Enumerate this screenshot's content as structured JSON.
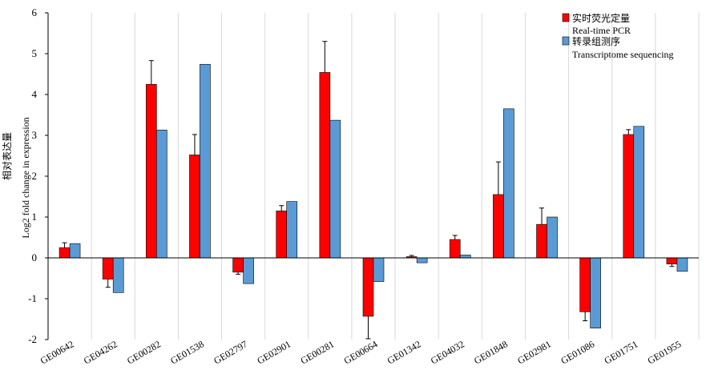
{
  "chart_data": {
    "type": "bar",
    "ylabel": "Log2 fold change in expression",
    "ylabel_cn": "相对表达量",
    "ylim": [
      -2,
      6
    ],
    "yticks": [
      "-2",
      "-1",
      "0",
      "1",
      "2",
      "3",
      "4",
      "5",
      "6"
    ],
    "grid": "vertical category separators",
    "legend_position": "top-right",
    "categories": [
      "GE00642",
      "GE04262",
      "GE00282",
      "GE01538",
      "GE02797",
      "GE02901",
      "GE00281",
      "GE00664",
      "GE01342",
      "GE04032",
      "GE01848",
      "GE02981",
      "GE01086",
      "GE01751",
      "GE01955"
    ],
    "series": [
      {
        "name_cn": "实时荧光定量",
        "name": "Real-time PCR",
        "color": "#ff0000",
        "values": [
          0.25,
          -0.52,
          4.25,
          2.52,
          -0.35,
          1.15,
          4.54,
          -1.43,
          0.03,
          0.45,
          1.55,
          0.82,
          -1.32,
          3.02,
          -0.15
        ],
        "errors": [
          0.12,
          0.2,
          0.58,
          0.5,
          0.05,
          0.13,
          0.76,
          0.55,
          0.03,
          0.1,
          0.8,
          0.4,
          0.22,
          0.12,
          0.06
        ]
      },
      {
        "name_cn": "转录组测序",
        "name": "Transcriptome sequencing",
        "color": "#5b9bd5",
        "values": [
          0.35,
          -0.85,
          3.13,
          4.74,
          -0.63,
          1.38,
          3.37,
          -0.58,
          -0.12,
          0.07,
          3.65,
          1.0,
          -1.72,
          3.22,
          -0.33
        ]
      }
    ]
  }
}
